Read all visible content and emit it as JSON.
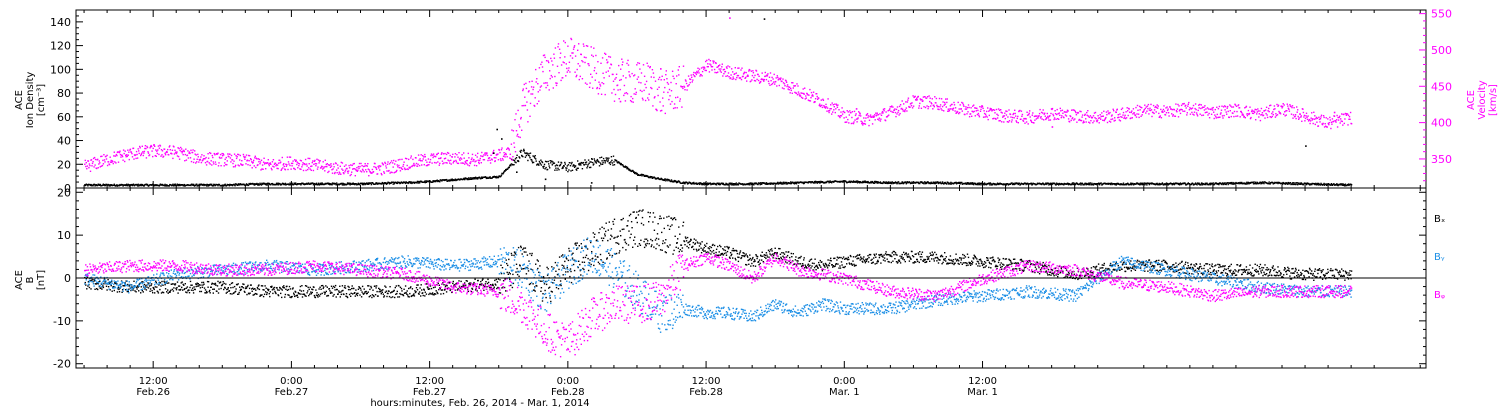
{
  "colors": {
    "black": "#000000",
    "magenta": "#ff00ff",
    "blue": "#1e90e6",
    "frame": "#000000"
  },
  "chart_data": [
    {
      "type": "scatter",
      "panel": "top",
      "ylabel": [
        "ACE",
        "Ion Density",
        "[cm⁻³]"
      ],
      "ylabel_right": [
        "ACE",
        "Velocity",
        "[km/s]"
      ],
      "ylim": [
        0,
        150
      ],
      "ylim_right": [
        310,
        555
      ],
      "yticks": [
        0,
        20,
        40,
        60,
        80,
        100,
        120,
        140
      ],
      "yticks_right": [
        350,
        400,
        450,
        500,
        550
      ],
      "series": [
        {
          "color": "black",
          "axis": "left",
          "x": [
            6,
            10,
            14,
            18,
            22,
            26,
            30,
            34,
            36,
            40,
            42,
            44,
            46,
            48,
            50,
            52,
            54,
            56,
            58,
            60,
            64,
            68,
            72,
            76,
            80,
            84,
            88,
            92,
            96,
            100,
            104,
            108,
            112,
            116
          ],
          "y": [
            3,
            3,
            3,
            3,
            4,
            4,
            4,
            5,
            6,
            9,
            10,
            30,
            20,
            18,
            22,
            24,
            12,
            8,
            5,
            4,
            4,
            5,
            6,
            5,
            5,
            4,
            4,
            4,
            4,
            4,
            4,
            5,
            4,
            3
          ]
        },
        {
          "color": "magenta",
          "axis": "right",
          "x": [
            6,
            8,
            10,
            12,
            14,
            16,
            18,
            20,
            22,
            24,
            26,
            28,
            30,
            32,
            34,
            36,
            38,
            40,
            42,
            43,
            44,
            46,
            48,
            50,
            52,
            54,
            55,
            56,
            58,
            60,
            62,
            64,
            66,
            68,
            70,
            72,
            74,
            76,
            78,
            80,
            82,
            84,
            86,
            88,
            90,
            92,
            94,
            96,
            98,
            100,
            102,
            104,
            106,
            108,
            110,
            112,
            114,
            116
          ],
          "y": [
            340,
            350,
            358,
            362,
            360,
            352,
            350,
            348,
            342,
            346,
            342,
            338,
            336,
            338,
            345,
            350,
            352,
            350,
            356,
            360,
            420,
            470,
            490,
            475,
            460,
            455,
            455,
            440,
            450,
            480,
            470,
            465,
            460,
            445,
            430,
            410,
            405,
            415,
            430,
            428,
            420,
            415,
            410,
            408,
            414,
            410,
            408,
            412,
            418,
            416,
            420,
            415,
            418,
            412,
            420,
            410,
            400,
            408
          ]
        }
      ],
      "outliers": [
        {
          "color": "black",
          "points": [
            [
              41.5,
              30
            ],
            [
              41.8,
              50
            ],
            [
              42.2,
              42
            ],
            [
              43.5,
              14
            ],
            [
              46.0,
              8
            ],
            [
              50.0,
              5
            ],
            [
              65.0,
              143
            ],
            [
              112.0,
              36
            ]
          ]
        },
        {
          "color": "magenta",
          "points": [
            [
              52.5,
              430
            ],
            [
              56.0,
              475
            ],
            [
              62.0,
              545
            ],
            [
              73.0,
              420
            ],
            [
              90.0,
              395
            ],
            [
              114.5,
              415
            ]
          ]
        }
      ]
    },
    {
      "type": "scatter",
      "panel": "bottom",
      "ylabel": [
        "ACE",
        "B",
        "[nT]"
      ],
      "ylim": [
        -21,
        21
      ],
      "yticks": [
        -20,
        -10,
        0,
        10,
        20
      ],
      "legend": [
        "Bₓ",
        "Bᵧ",
        "Bᵩ"
      ],
      "series": [
        {
          "color": "black",
          "x": [
            6,
            10,
            14,
            18,
            22,
            26,
            30,
            34,
            38,
            42,
            44,
            46,
            48,
            50,
            52,
            54,
            56,
            58,
            60,
            62,
            64,
            66,
            68,
            70,
            72,
            76,
            80,
            84,
            88,
            92,
            96,
            100,
            104,
            108,
            112,
            116
          ],
          "y": [
            -1,
            -2,
            -2,
            -2,
            -3,
            -3,
            -3,
            -3,
            -2,
            -1,
            4,
            -2,
            3,
            6,
            10,
            12,
            11,
            9,
            7,
            6,
            4,
            6,
            4,
            3,
            4,
            5,
            5,
            4,
            3,
            1,
            3,
            3,
            2,
            2,
            1,
            1
          ]
        },
        {
          "color": "blue",
          "x": [
            6,
            10,
            14,
            18,
            22,
            26,
            30,
            34,
            38,
            42,
            44,
            46,
            48,
            50,
            52,
            54,
            56,
            58,
            60,
            62,
            64,
            66,
            68,
            70,
            72,
            76,
            80,
            84,
            88,
            92,
            96,
            100,
            104,
            108,
            112,
            116
          ],
          "y": [
            0,
            -2,
            1,
            2,
            3,
            2,
            3,
            4,
            3,
            4,
            2,
            -4,
            2,
            6,
            2,
            -3,
            -8,
            -7,
            -8,
            -8,
            -9,
            -6,
            -8,
            -6,
            -7,
            -7,
            -5,
            -4,
            -3,
            -4,
            4,
            2,
            0,
            -2,
            -3,
            -3
          ]
        },
        {
          "color": "magenta",
          "x": [
            6,
            10,
            14,
            18,
            22,
            26,
            30,
            34,
            38,
            42,
            44,
            46,
            48,
            50,
            52,
            54,
            56,
            58,
            60,
            62,
            64,
            66,
            68,
            70,
            72,
            76,
            80,
            84,
            88,
            92,
            96,
            100,
            104,
            108,
            112,
            116
          ],
          "y": [
            2,
            3,
            3,
            2,
            2,
            3,
            2,
            1,
            -2,
            -3,
            -6,
            -12,
            -15,
            -9,
            -6,
            -6,
            -5,
            3,
            5,
            3,
            0,
            5,
            2,
            1,
            0,
            -3,
            -4,
            0,
            3,
            2,
            -1,
            -2,
            -4,
            -3,
            -3,
            -3
          ]
        }
      ]
    }
  ],
  "xaxis": {
    "xlim": [
      5.3,
      122.5
    ],
    "title": "hours:minutes, Feb. 26, 2014 - Mar.  1, 2014",
    "ticks": [
      {
        "x": 12,
        "line1": "12:00",
        "line2": "Feb.26"
      },
      {
        "x": 24,
        "line1": "0:00",
        "line2": "Feb.27"
      },
      {
        "x": 36,
        "line1": "12:00",
        "line2": "Feb.27"
      },
      {
        "x": 48,
        "line1": "0:00",
        "line2": "Feb.28"
      },
      {
        "x": 60,
        "line1": "12:00",
        "line2": "Feb.28"
      },
      {
        "x": 72,
        "line1": "0:00",
        "line2": "Mar.  1"
      },
      {
        "x": 84,
        "line1": "12:00",
        "line2": "Mar.  1"
      }
    ],
    "minor_step": 2
  }
}
